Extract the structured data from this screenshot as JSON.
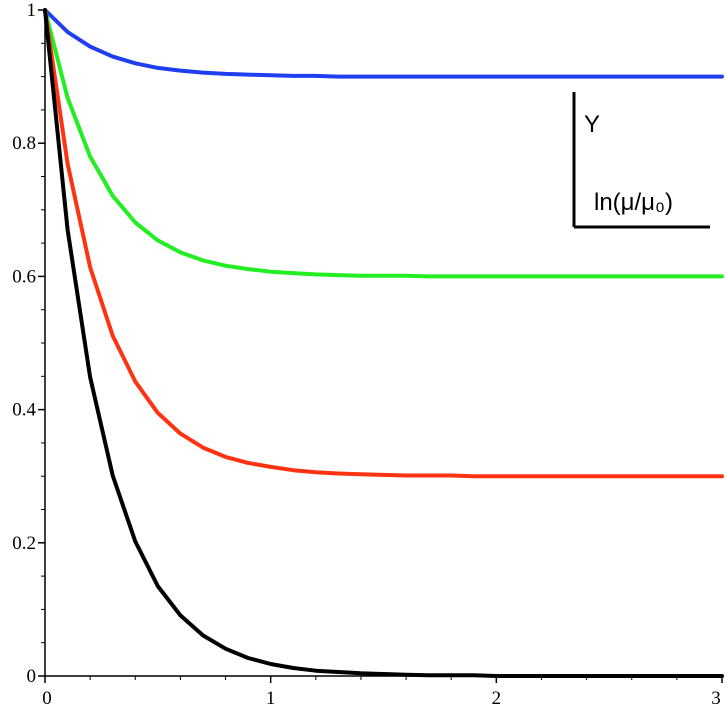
{
  "chart_data": {
    "type": "line",
    "title": "",
    "xlabel": "",
    "ylabel": "",
    "xlim": [
      0,
      3
    ],
    "ylim": [
      0,
      1
    ],
    "grid": false,
    "x_ticks": [
      {
        "value": 0,
        "label": "0"
      },
      {
        "value": 1,
        "label": "1"
      },
      {
        "value": 2,
        "label": "2"
      },
      {
        "value": 3,
        "label": "3"
      }
    ],
    "y_ticks": [
      {
        "value": 0,
        "label": "0"
      },
      {
        "value": 0.2,
        "label": "0.2"
      },
      {
        "value": 0.4,
        "label": "0.4"
      },
      {
        "value": 0.6,
        "label": "0.6"
      },
      {
        "value": 0.8,
        "label": "0.8"
      },
      {
        "value": 1,
        "label": "1"
      }
    ],
    "x": [
      0,
      0.1,
      0.2,
      0.3,
      0.4,
      0.5,
      0.6,
      0.7,
      0.8,
      0.9,
      1.0,
      1.1,
      1.2,
      1.3,
      1.4,
      1.5,
      1.6,
      1.7,
      1.8,
      1.9,
      2.0,
      2.1,
      2.2,
      2.3,
      2.4,
      2.5,
      2.6,
      2.7,
      2.8,
      2.9,
      3.0
    ],
    "series": [
      {
        "color": "#1e3ef0",
        "values": [
          1.0,
          0.967,
          0.945,
          0.93,
          0.92,
          0.913,
          0.909,
          0.906,
          0.904,
          0.903,
          0.902,
          0.901,
          0.901,
          0.9,
          0.9,
          0.9,
          0.9,
          0.9,
          0.9,
          0.9,
          0.9,
          0.9,
          0.9,
          0.9,
          0.9,
          0.9,
          0.9,
          0.9,
          0.9,
          0.9,
          0.9
        ]
      },
      {
        "color": "#22ee22",
        "values": [
          1.0,
          0.868,
          0.78,
          0.721,
          0.681,
          0.654,
          0.636,
          0.624,
          0.616,
          0.611,
          0.607,
          0.605,
          0.603,
          0.602,
          0.601,
          0.601,
          0.601,
          0.6,
          0.6,
          0.6,
          0.6,
          0.6,
          0.6,
          0.6,
          0.6,
          0.6,
          0.6,
          0.6,
          0.6,
          0.6,
          0.6
        ]
      },
      {
        "color": "#ff3311",
        "values": [
          1.0,
          0.769,
          0.614,
          0.511,
          0.442,
          0.395,
          0.364,
          0.343,
          0.329,
          0.32,
          0.314,
          0.309,
          0.306,
          0.304,
          0.303,
          0.302,
          0.301,
          0.301,
          0.301,
          0.3,
          0.3,
          0.3,
          0.3,
          0.3,
          0.3,
          0.3,
          0.3,
          0.3,
          0.3,
          0.3,
          0.3
        ]
      },
      {
        "color": "#000000",
        "values": [
          1.0,
          0.67,
          0.449,
          0.301,
          0.202,
          0.135,
          0.091,
          0.061,
          0.041,
          0.027,
          0.018,
          0.012,
          0.008,
          0.006,
          0.004,
          0.003,
          0.002,
          0.001,
          0.001,
          0.001,
          0.0,
          0.0,
          0.0,
          0.0,
          0.0,
          0.0,
          0.0,
          0.0,
          0.0,
          0.0,
          0.0
        ]
      }
    ]
  },
  "inset": {
    "y_label": "Y",
    "x_label": "ln(μ/μ₀)"
  }
}
